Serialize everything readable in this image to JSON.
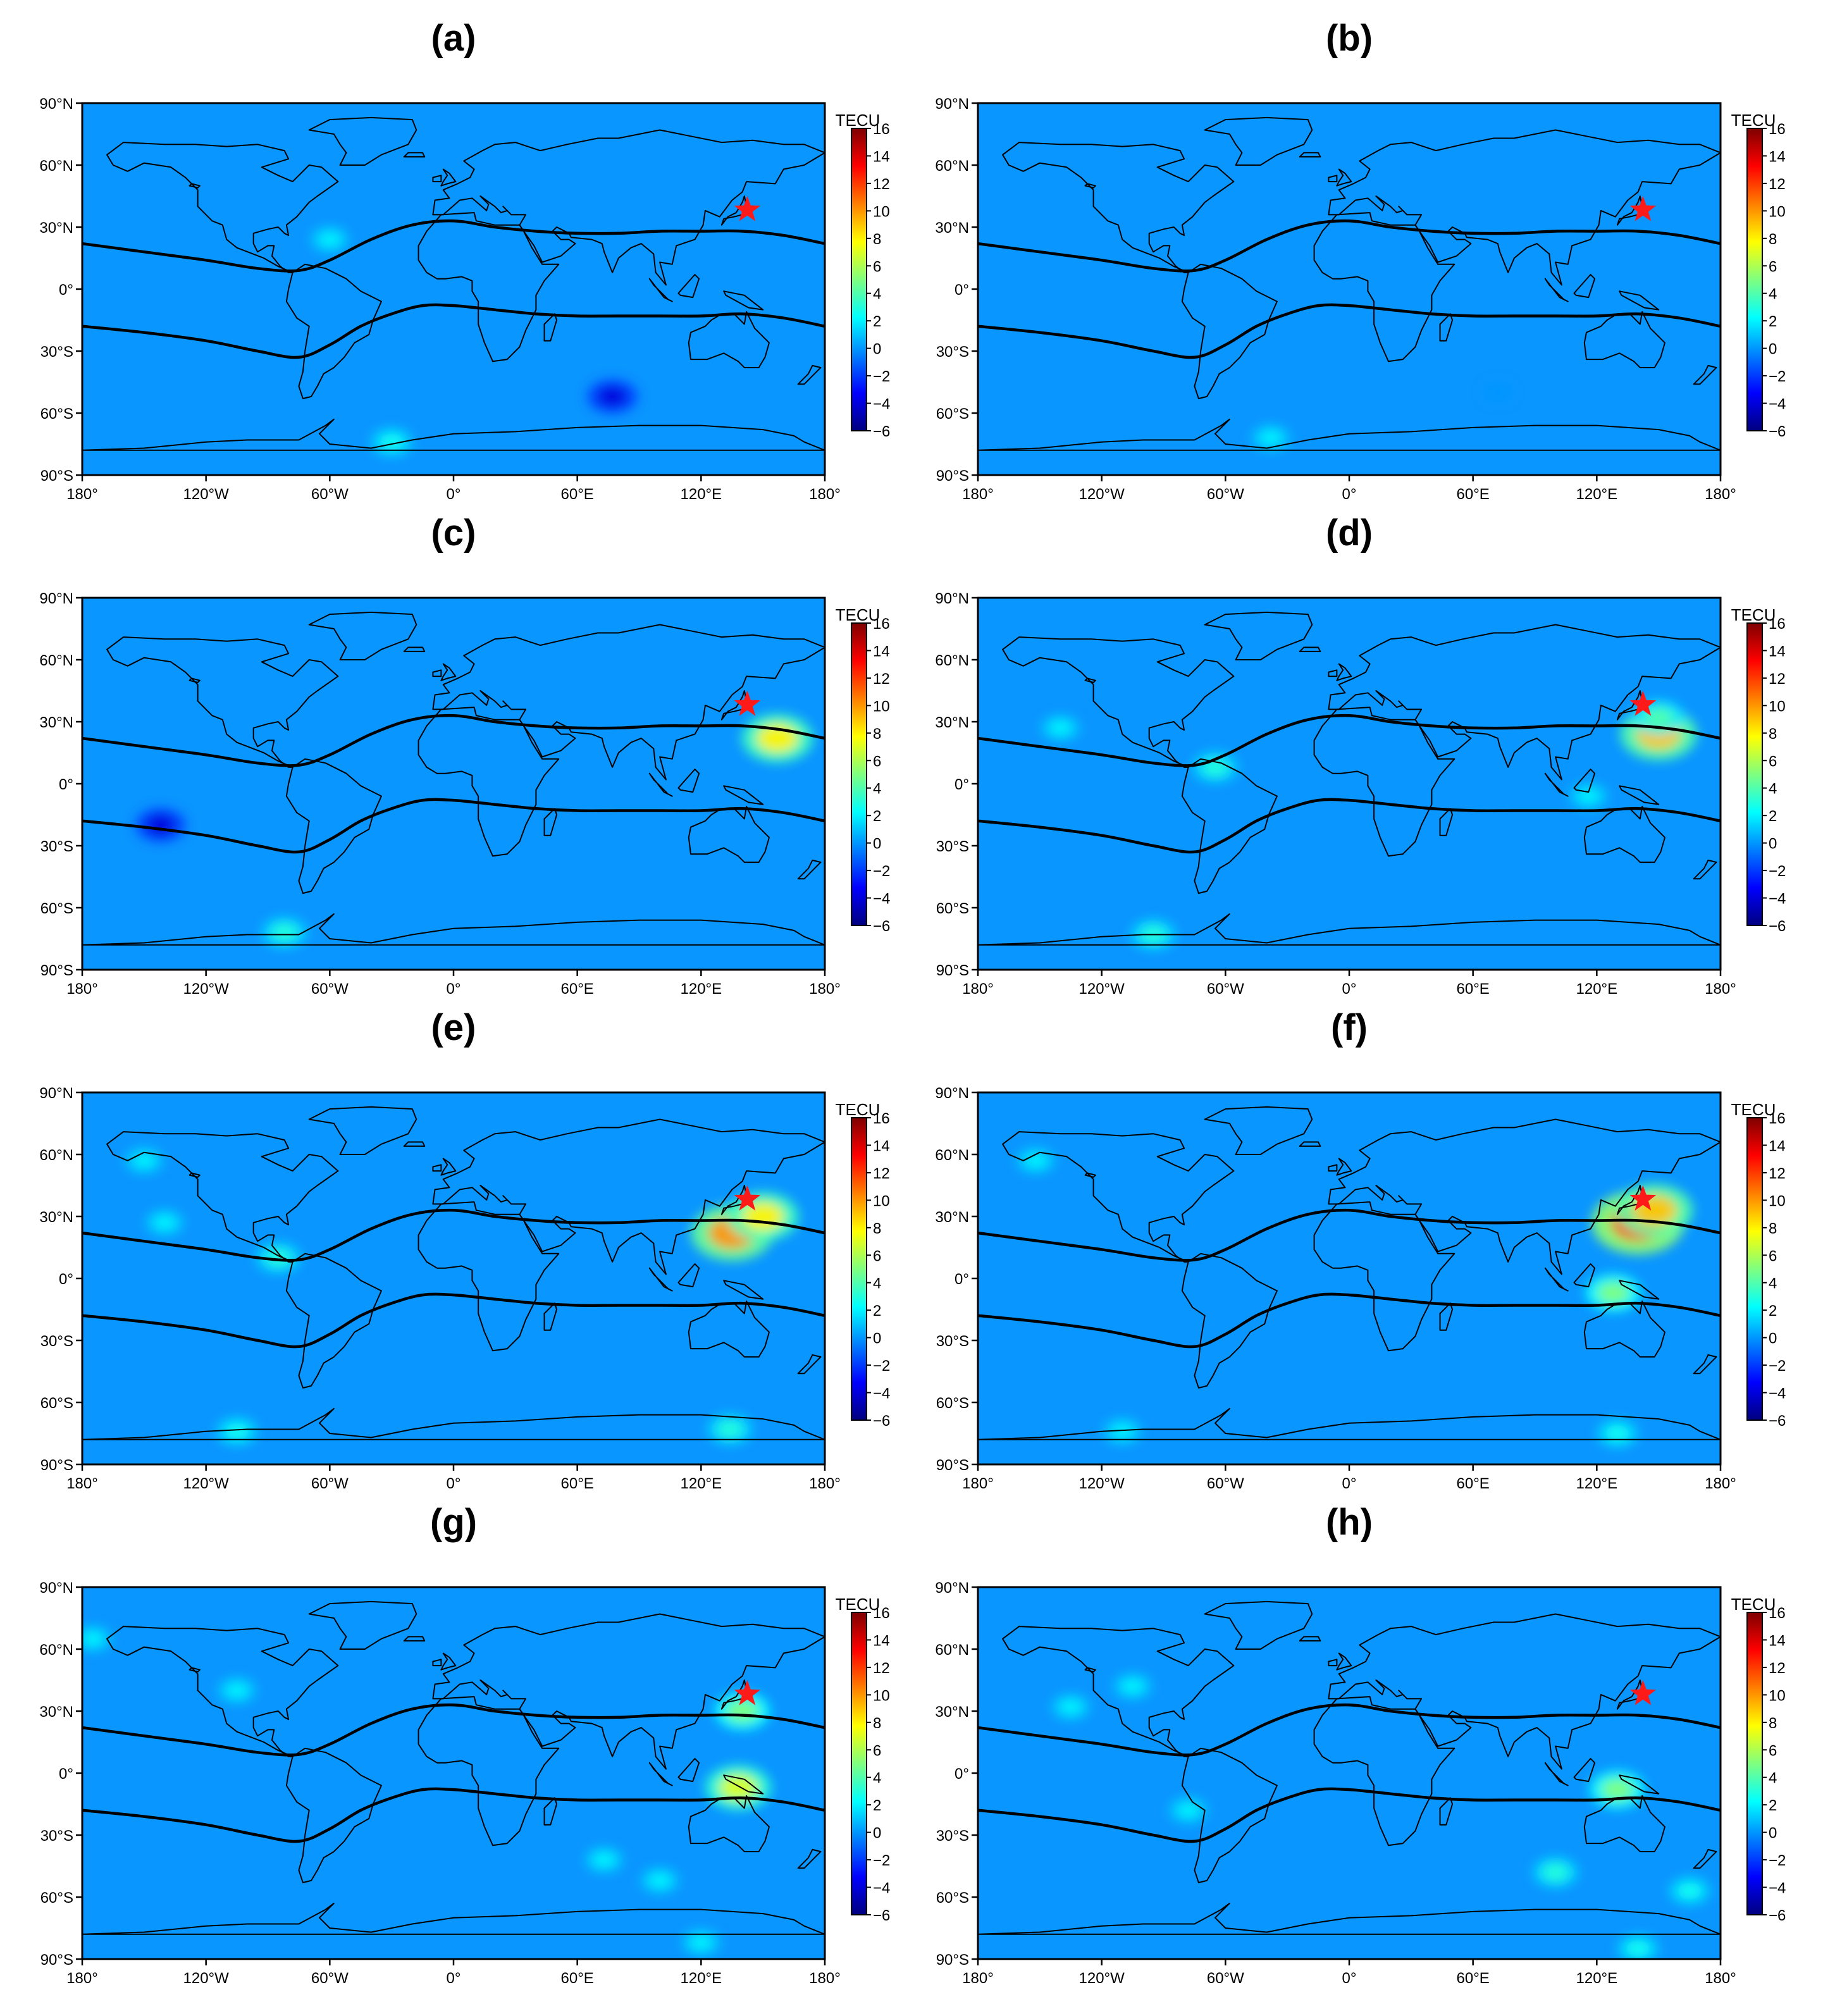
{
  "colorbar": {
    "label": "TECU",
    "ticks": [
      16,
      14,
      12,
      10,
      8,
      6,
      4,
      2,
      0,
      -2,
      -4,
      -6
    ],
    "range": [
      -6,
      16
    ],
    "colors": [
      "#00007f",
      "#0000ff",
      "#007fff",
      "#00ffff",
      "#7fff7f",
      "#ffff00",
      "#ff7f00",
      "#ff0000",
      "#7f0000"
    ]
  },
  "axes": {
    "x_ticks": [
      "180°",
      "120°W",
      "60°W",
      "0°",
      "60°E",
      "120°E",
      "180°"
    ],
    "y_ticks": [
      "90°N",
      "60°N",
      "30°N",
      "0°",
      "30°S",
      "60°S",
      "90°S"
    ]
  },
  "background_color": "#0a96ff",
  "marker_color": "#ff1a1a",
  "chart_data": [
    {
      "type": "heatmap",
      "panel": "(a)",
      "xlim": [
        -180,
        180
      ],
      "ylim": [
        -90,
        90
      ],
      "epicenter": {
        "lon": 142.4,
        "lat": 38.3
      },
      "anomalies": [
        {
          "lon": 77,
          "lat": -52,
          "value": -4
        },
        {
          "lon": -60,
          "lat": 24,
          "value": 2
        },
        {
          "lon": -30,
          "lat": -74,
          "value": 2.5
        }
      ]
    },
    {
      "type": "heatmap",
      "panel": "(b)",
      "xlim": [
        -180,
        180
      ],
      "ylim": [
        -90,
        90
      ],
      "epicenter": {
        "lon": 142.4,
        "lat": 38.3
      },
      "anomalies": [
        {
          "lon": 72,
          "lat": -50,
          "value": 0
        },
        {
          "lon": -38,
          "lat": -72,
          "value": 2
        }
      ]
    },
    {
      "type": "heatmap",
      "panel": "(c)",
      "xlim": [
        -180,
        180
      ],
      "ylim": [
        -90,
        90
      ],
      "epicenter": {
        "lon": 142.4,
        "lat": 38.3
      },
      "anomalies": [
        {
          "lon": 157,
          "lat": 22,
          "value": 8
        },
        {
          "lon": -142,
          "lat": -20,
          "value": -4
        },
        {
          "lon": -82,
          "lat": -72,
          "value": 3
        }
      ]
    },
    {
      "type": "heatmap",
      "panel": "(d)",
      "xlim": [
        -180,
        180
      ],
      "ylim": [
        -90,
        90
      ],
      "epicenter": {
        "lon": 142.4,
        "lat": 38.3
      },
      "anomalies": [
        {
          "lon": 150,
          "lat": 24,
          "value": 9
        },
        {
          "lon": 150,
          "lat": 32,
          "value": 4
        },
        {
          "lon": -140,
          "lat": 27,
          "value": 2
        },
        {
          "lon": -65,
          "lat": 8,
          "value": 3
        },
        {
          "lon": 116,
          "lat": -6,
          "value": 2
        },
        {
          "lon": -95,
          "lat": -73,
          "value": 3
        }
      ]
    },
    {
      "type": "heatmap",
      "panel": "(e)",
      "xlim": [
        -180,
        180
      ],
      "ylim": [
        -90,
        90
      ],
      "epicenter": {
        "lon": 142.4,
        "lat": 38.3
      },
      "anomalies": [
        {
          "lon": 135,
          "lat": 22,
          "value": 10
        },
        {
          "lon": 150,
          "lat": 30,
          "value": 8
        },
        {
          "lon": -150,
          "lat": 57,
          "value": 2
        },
        {
          "lon": -140,
          "lat": 27,
          "value": 2
        },
        {
          "lon": -85,
          "lat": 10,
          "value": 3
        },
        {
          "lon": -105,
          "lat": -74,
          "value": 2.5
        },
        {
          "lon": 134,
          "lat": -73,
          "value": 3
        }
      ]
    },
    {
      "type": "heatmap",
      "panel": "(f)",
      "xlim": [
        -180,
        180
      ],
      "ylim": [
        -90,
        90
      ],
      "epicenter": {
        "lon": 142.4,
        "lat": 38.3
      },
      "anomalies": [
        {
          "lon": 140,
          "lat": 27,
          "value": 12
        },
        {
          "lon": 148,
          "lat": 33,
          "value": 9
        },
        {
          "lon": 128,
          "lat": -7,
          "value": 5
        },
        {
          "lon": -152,
          "lat": 57,
          "value": 2
        },
        {
          "lon": 130,
          "lat": -75,
          "value": 2.5
        },
        {
          "lon": -110,
          "lat": -74,
          "value": 2
        }
      ]
    },
    {
      "type": "heatmap",
      "panel": "(g)",
      "xlim": [
        -180,
        180
      ],
      "ylim": [
        -90,
        90
      ],
      "epicenter": {
        "lon": 142.4,
        "lat": 38.3
      },
      "anomalies": [
        {
          "lon": 138,
          "lat": -7,
          "value": 7
        },
        {
          "lon": 140,
          "lat": 30,
          "value": 5
        },
        {
          "lon": -105,
          "lat": 40,
          "value": 2
        },
        {
          "lon": -175,
          "lat": 65,
          "value": 2
        },
        {
          "lon": 73,
          "lat": -42,
          "value": 2
        },
        {
          "lon": 100,
          "lat": -52,
          "value": 2
        },
        {
          "lon": 120,
          "lat": -82,
          "value": 2
        }
      ]
    },
    {
      "type": "heatmap",
      "panel": "(h)",
      "xlim": [
        -180,
        180
      ],
      "ylim": [
        -90,
        90
      ],
      "epicenter": {
        "lon": 142.4,
        "lat": 38.3
      },
      "anomalies": [
        {
          "lon": 130,
          "lat": -8,
          "value": 5
        },
        {
          "lon": 100,
          "lat": -48,
          "value": 3
        },
        {
          "lon": 165,
          "lat": -57,
          "value": 2.5
        },
        {
          "lon": 140,
          "lat": -85,
          "value": 2.5
        },
        {
          "lon": -105,
          "lat": 42,
          "value": 2
        },
        {
          "lon": -135,
          "lat": 32,
          "value": 2
        },
        {
          "lon": -78,
          "lat": -18,
          "value": 2
        }
      ]
    }
  ]
}
